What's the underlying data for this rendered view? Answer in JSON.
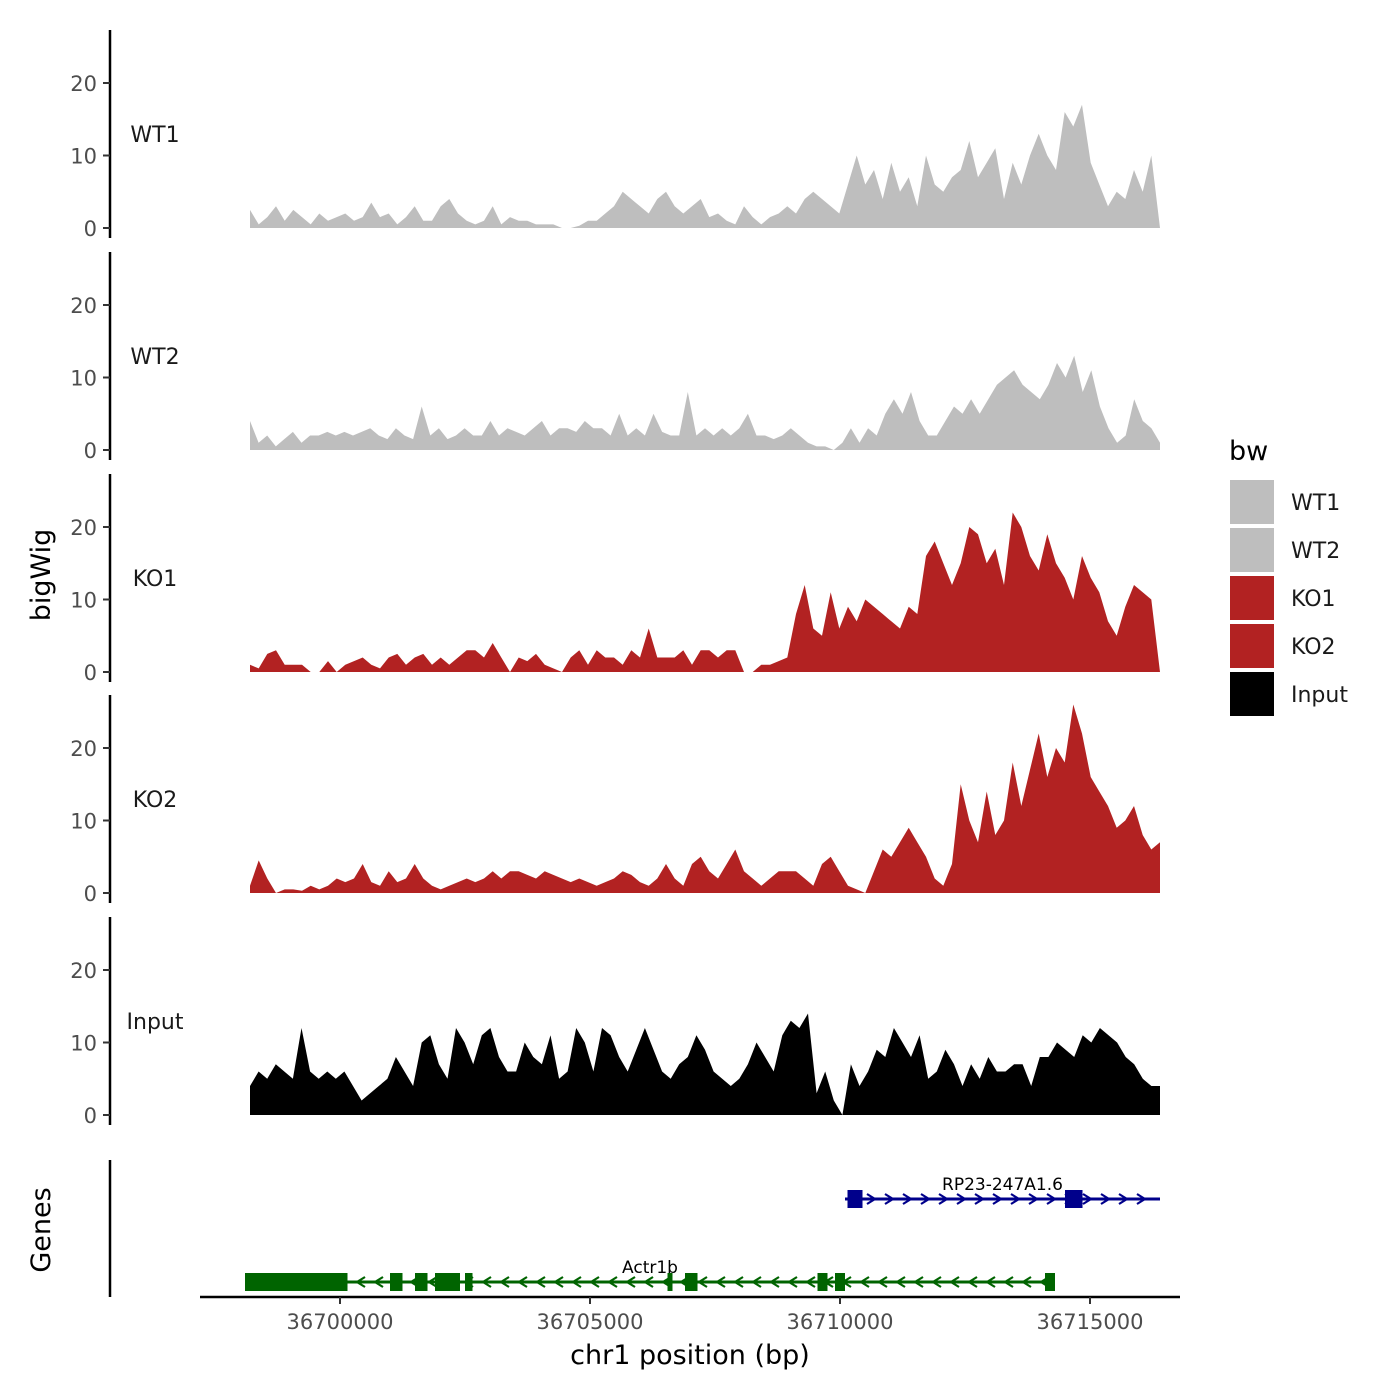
{
  "chart_data": {
    "type": "area",
    "x_axis": {
      "title": "chr1 position (bp)",
      "range": [
        36697200,
        36716800
      ],
      "ticks": [
        36700000,
        36705000,
        36710000,
        36715000
      ],
      "tick_labels": [
        "36700000",
        "36705000",
        "36710000",
        "36715000"
      ]
    },
    "y_axis": {
      "title": "bigWig",
      "range": [
        0,
        27
      ],
      "ticks": [
        0,
        10,
        20
      ],
      "tick_labels": [
        "0",
        "10",
        "20"
      ]
    },
    "gene_track_title": "Genes",
    "legend": {
      "title": "bw",
      "placement": "right",
      "entries": [
        {
          "label": "WT1",
          "color": "#BEBEBE"
        },
        {
          "label": "WT2",
          "color": "#BEBEBE"
        },
        {
          "label": "KO1",
          "color": "#B22222"
        },
        {
          "label": "KO2",
          "color": "#B22222"
        },
        {
          "label": "Input",
          "color": "#000000"
        }
      ]
    },
    "series": [
      {
        "name": "WT1",
        "color": "#BEBEBE",
        "x_start": 36698200,
        "x_end": 36716400,
        "values": [
          2.5,
          0.5,
          1.5,
          3,
          1,
          2.5,
          1.5,
          0.5,
          2,
          1,
          1.5,
          2,
          1,
          1.5,
          3.5,
          1.5,
          2,
          0.5,
          1.5,
          3,
          1,
          1,
          3,
          4,
          2,
          1,
          0.5,
          1,
          3,
          0.5,
          1.5,
          1,
          1,
          0.5,
          0.5,
          0.5,
          0,
          0,
          0.3,
          1,
          1,
          2,
          3,
          5,
          4,
          3,
          2,
          4,
          5,
          3,
          2,
          3,
          4,
          1.5,
          2,
          1,
          0.5,
          3,
          1.5,
          0.5,
          1.5,
          2,
          3,
          2,
          4,
          5,
          4,
          3,
          2,
          6,
          10,
          6,
          8,
          4,
          9,
          5,
          7,
          3,
          10,
          6,
          5,
          7,
          8,
          12,
          7,
          9,
          11,
          4,
          9,
          6,
          10,
          13,
          10,
          8,
          16,
          14,
          17,
          9,
          6,
          3,
          5,
          4,
          8,
          5,
          10,
          0
        ]
      },
      {
        "name": "WT2",
        "color": "#BEBEBE",
        "x_start": 36698200,
        "x_end": 36716400,
        "values": [
          4,
          1,
          2,
          0.5,
          1.5,
          2.5,
          1,
          2,
          2,
          2.5,
          2,
          2.5,
          2,
          2.5,
          3,
          2,
          1.5,
          3,
          2,
          1.5,
          6,
          2,
          3,
          1.5,
          2,
          3,
          2,
          2,
          4,
          2,
          3,
          2.5,
          2,
          3,
          4,
          2,
          3,
          3,
          2.5,
          4,
          3,
          3,
          2,
          5,
          2,
          3,
          2,
          5,
          2.5,
          2,
          2,
          8,
          2,
          3,
          2,
          3,
          2,
          3,
          5,
          2,
          2,
          1.5,
          2,
          3,
          2,
          1,
          0.5,
          0.5,
          0,
          1,
          3,
          1,
          3,
          2,
          5,
          7,
          5,
          8,
          4,
          2,
          2,
          4,
          6,
          5,
          7,
          5,
          7,
          9,
          10,
          11,
          9,
          8,
          7,
          9,
          12,
          10,
          13,
          8,
          11,
          6,
          3,
          1,
          2,
          7,
          4,
          3,
          1
        ]
      },
      {
        "name": "KO1",
        "color": "#B22222",
        "x_start": 36698200,
        "x_end": 36716400,
        "values": [
          1,
          0.5,
          2.5,
          3,
          1,
          1,
          1,
          0,
          0,
          1.5,
          0,
          1,
          1.5,
          2,
          1,
          0.5,
          2,
          2.5,
          1,
          2,
          2.5,
          1,
          2,
          1,
          2,
          3,
          3,
          2,
          4,
          2,
          0,
          2,
          1.5,
          2.5,
          1,
          0.5,
          0,
          2,
          3,
          1,
          3,
          2,
          2,
          1,
          3,
          2,
          6,
          2,
          2,
          2,
          3,
          1,
          3,
          3,
          2,
          3,
          3,
          0,
          0,
          1,
          1,
          1.5,
          2,
          8,
          12,
          6,
          5,
          11,
          6,
          9,
          7,
          10,
          9,
          8,
          7,
          6,
          9,
          8,
          16,
          18,
          15,
          12,
          15,
          20,
          19,
          15,
          17,
          12,
          22,
          20,
          16,
          14,
          19,
          15,
          13,
          10,
          16,
          13,
          11,
          7,
          5,
          9,
          12,
          11,
          10,
          0
        ]
      },
      {
        "name": "KO2",
        "color": "#B22222",
        "x_start": 36698200,
        "x_end": 36716400,
        "values": [
          1,
          4.5,
          2,
          0,
          0.5,
          0.5,
          0.3,
          1,
          0.5,
          1,
          2,
          1.5,
          2,
          4,
          1.5,
          1,
          3,
          1.5,
          2,
          4,
          2,
          1,
          0.5,
          1,
          1.5,
          2,
          1.5,
          2,
          3,
          2,
          3,
          3,
          2.5,
          2,
          3,
          2.5,
          2,
          1.5,
          2,
          1.5,
          1,
          1.5,
          2,
          3,
          2.5,
          1.5,
          1,
          2,
          4,
          2,
          1,
          4,
          5,
          3,
          2,
          4,
          6,
          3,
          2,
          1,
          2,
          3,
          3,
          3,
          2,
          1,
          4,
          5,
          3,
          1,
          0.5,
          0,
          3,
          6,
          5,
          7,
          9,
          7,
          5,
          2,
          1,
          4,
          15,
          10,
          7,
          14,
          8,
          10,
          18,
          12,
          17,
          22,
          16,
          20,
          18,
          26,
          22,
          16,
          14,
          12,
          9,
          10,
          12,
          8,
          6,
          7
        ]
      },
      {
        "name": "Input",
        "color": "#000000",
        "x_start": 36698200,
        "x_end": 36716400,
        "values": [
          4,
          6,
          5,
          7,
          6,
          5,
          12,
          6,
          5,
          6,
          5,
          6,
          4,
          2,
          3,
          4,
          5,
          8,
          6,
          4,
          10,
          11,
          7,
          5,
          12,
          10,
          7,
          11,
          12,
          8,
          6,
          6,
          10,
          8,
          7,
          11,
          5,
          6,
          12,
          10,
          6,
          12,
          11,
          8,
          6,
          9,
          12,
          9,
          6,
          5,
          7,
          8,
          11,
          9,
          6,
          5,
          4,
          5,
          7,
          10,
          8,
          6,
          11,
          13,
          12,
          14,
          3,
          6,
          2,
          0,
          7,
          4,
          6,
          9,
          8,
          12,
          10,
          8,
          11,
          5,
          6,
          9,
          7,
          4,
          7,
          5,
          8,
          6,
          6,
          7,
          7,
          4,
          8,
          8,
          10,
          9,
          8,
          11,
          10,
          12,
          11,
          10,
          8,
          7,
          5,
          4,
          4
        ]
      }
    ],
    "genes": [
      {
        "name": "RP23-247A1.6",
        "strand": "+",
        "color": "#00008B",
        "start": 36710100,
        "end": 36716400,
        "exons": [
          [
            36710150,
            36710450
          ],
          [
            36714500,
            36714850
          ]
        ]
      },
      {
        "name": "Actr1b",
        "strand": "-",
        "color": "#006400",
        "start": 36698100,
        "end": 36714300,
        "exons": [
          [
            36698100,
            36700150
          ],
          [
            36701000,
            36701250
          ],
          [
            36701500,
            36701750
          ],
          [
            36701900,
            36702400
          ],
          [
            36702500,
            36702650
          ],
          [
            36706550,
            36706650
          ],
          [
            36706900,
            36707150
          ],
          [
            36709550,
            36709750
          ],
          [
            36709900,
            36710100
          ],
          [
            36714100,
            36714300
          ]
        ]
      }
    ]
  }
}
